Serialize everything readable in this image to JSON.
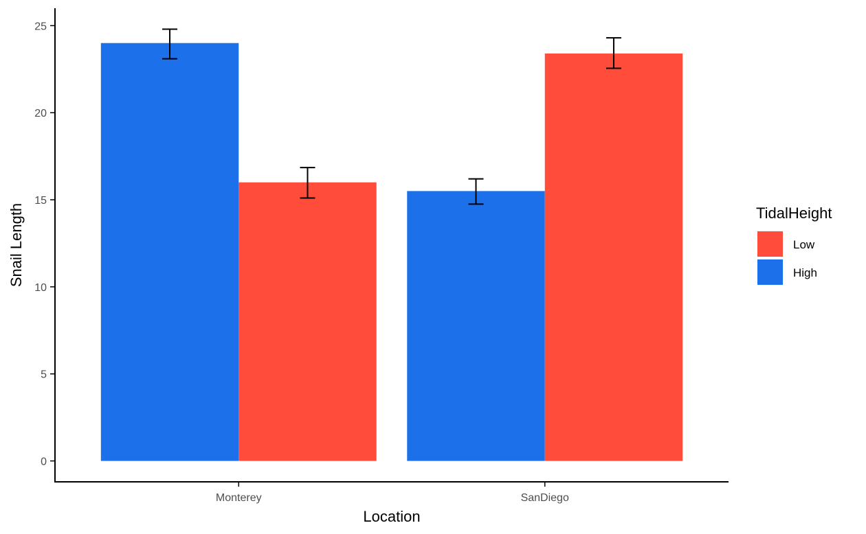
{
  "chart_data": {
    "type": "bar",
    "xlabel": "Location",
    "ylabel": "Snail Length",
    "categories": [
      "Monterey",
      "SanDiego"
    ],
    "ylim": [
      -1.2,
      26
    ],
    "yticks": [
      0,
      5,
      10,
      15,
      20,
      25
    ],
    "series": [
      {
        "name": "High",
        "color": "#1c71eb",
        "values": [
          24.0,
          15.5
        ],
        "error_low": [
          23.1,
          14.75
        ],
        "error_high": [
          24.8,
          16.2
        ]
      },
      {
        "name": "Low",
        "color": "#ff4c3b",
        "values": [
          16.0,
          23.4
        ],
        "error_low": [
          15.1,
          22.55
        ],
        "error_high": [
          16.85,
          24.3
        ]
      }
    ],
    "legend": {
      "title": "TidalHeight",
      "position": "right",
      "entries": [
        {
          "label": "Low",
          "color": "#ff4c3b"
        },
        {
          "label": "High",
          "color": "#1c71eb"
        }
      ]
    },
    "grid": false
  }
}
